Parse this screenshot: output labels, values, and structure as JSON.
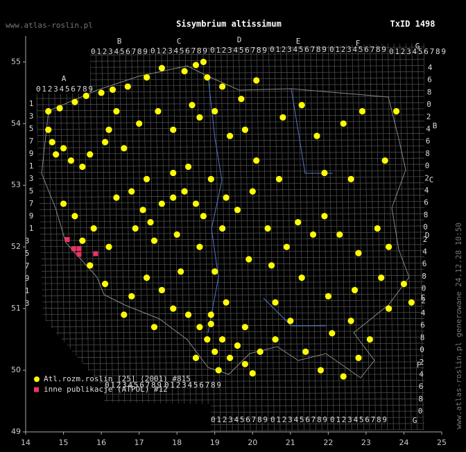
{
  "header": {
    "site": "www.atlas-roslin.pl",
    "title": "Sisymbrium altissimum",
    "taxon_id": "TxID 1498",
    "footer": "www.atlas-roslin.pl generowane 24.12.28 10:50"
  },
  "grid_labels": {
    "letters": [
      "A",
      "B",
      "C",
      "D",
      "E",
      "F",
      "G"
    ],
    "digits": "0123456789",
    "left_digits": [
      "1",
      "3",
      "5",
      "7",
      "9"
    ],
    "right_digits": [
      "4",
      "6",
      "8",
      "0",
      "2"
    ]
  },
  "chart_data": {
    "type": "scatter",
    "xlim": [
      14,
      25
    ],
    "ylim": [
      49,
      55.42
    ],
    "xticks": [
      14,
      15,
      16,
      17,
      18,
      19,
      20,
      21,
      22,
      23,
      24,
      25
    ],
    "yticks": [
      49,
      50,
      51,
      52,
      53,
      54,
      55
    ],
    "series": [
      {
        "name": "Atl.rozm.roslin [25] (2001) #815",
        "color": "#ffff00",
        "marker": "circle",
        "x": [
          14.6,
          14.9,
          15.3,
          15.6,
          16.0,
          16.3,
          16.7,
          17.2,
          17.6,
          18.2,
          18.5,
          18.7,
          18.8,
          19.2,
          19.7,
          20.1,
          21.3,
          22.9,
          23.8,
          14.6,
          14.7,
          14.8,
          15.0,
          15.2,
          15.5,
          15.7,
          16.1,
          16.2,
          16.6,
          16.4,
          17.0,
          17.5,
          17.9,
          18.4,
          18.6,
          19.0,
          19.4,
          19.8,
          20.8,
          21.7,
          22.4,
          23.5,
          16.8,
          17.1,
          17.3,
          17.6,
          17.9,
          18.2,
          18.5,
          18.7,
          18.9,
          18.3,
          17.9,
          17.2,
          16.4,
          16.9,
          17.4,
          18.0,
          18.6,
          19.2,
          19.6,
          20.0,
          20.4,
          20.9,
          21.2,
          21.6,
          21.9,
          22.3,
          22.8,
          23.3,
          23.6,
          20.7,
          21.9,
          22.6,
          20.1,
          19.3,
          20.5,
          19.9,
          21.3,
          22.0,
          22.7,
          23.4,
          24.0,
          24.2,
          23.6,
          15.0,
          15.3,
          15.8,
          16.2,
          15.5,
          15.7,
          16.1,
          16.8,
          17.2,
          17.6,
          17.9,
          16.6,
          17.4,
          18.3,
          18.6,
          18.8,
          19.0,
          19.2,
          19.4,
          19.6,
          19.8,
          19.1,
          18.5,
          18.9,
          19.3,
          19.8,
          20.2,
          20.6,
          21.0,
          21.4,
          21.8,
          22.4,
          22.1,
          22.8,
          23.1,
          22.6,
          20.0,
          20.6,
          18.1,
          19.0,
          18.9
        ],
        "y": [
          54.2,
          54.25,
          54.35,
          54.45,
          54.5,
          54.55,
          54.6,
          54.75,
          54.9,
          54.85,
          54.95,
          55.0,
          54.75,
          54.6,
          54.4,
          54.7,
          54.3,
          54.2,
          54.2,
          53.9,
          53.7,
          53.5,
          53.6,
          53.4,
          53.3,
          53.5,
          53.7,
          53.9,
          53.6,
          54.2,
          54.0,
          54.2,
          53.9,
          54.3,
          54.1,
          54.2,
          53.8,
          53.9,
          54.1,
          53.8,
          54.0,
          53.4,
          52.9,
          52.6,
          52.4,
          52.7,
          52.8,
          52.9,
          52.7,
          52.5,
          53.1,
          53.3,
          53.2,
          53.1,
          52.8,
          52.3,
          52.1,
          52.2,
          52.0,
          52.3,
          52.6,
          52.9,
          52.3,
          52.0,
          52.4,
          52.2,
          52.5,
          52.2,
          51.9,
          52.3,
          52.0,
          53.1,
          53.2,
          53.1,
          53.4,
          52.8,
          51.7,
          51.8,
          51.5,
          51.2,
          51.3,
          51.5,
          51.4,
          51.1,
          51.0,
          52.7,
          52.5,
          52.3,
          52.0,
          52.1,
          51.7,
          51.4,
          51.2,
          51.5,
          51.3,
          51.0,
          50.9,
          50.7,
          50.9,
          50.7,
          50.5,
          50.3,
          50.5,
          50.2,
          50.4,
          50.1,
          50.0,
          50.2,
          50.9,
          51.1,
          50.7,
          50.3,
          50.5,
          50.8,
          50.3,
          50.0,
          49.9,
          50.6,
          50.2,
          50.5,
          50.8,
          49.95,
          51.1,
          51.6,
          51.6,
          50.75
        ]
      },
      {
        "name": "inne publikacje (ATPOL) #12",
        "color": "#ee3366",
        "marker": "square",
        "x": [
          15.1,
          15.27,
          15.41,
          15.41,
          15.85
        ],
        "y": [
          52.12,
          51.97,
          51.97,
          51.88,
          51.89
        ]
      }
    ]
  }
}
